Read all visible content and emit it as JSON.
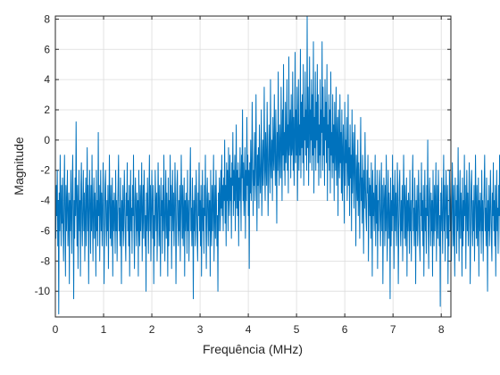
{
  "chart_data": {
    "type": "line",
    "xlabel": "Frequência (MHz)",
    "ylabel": "Magnitude",
    "xlim": [
      0,
      8.2
    ],
    "ylim": [
      -11.7,
      8.2
    ],
    "x_ticks": [
      "0",
      "1",
      "2",
      "3",
      "4",
      "5",
      "6",
      "7",
      "8"
    ],
    "y_ticks": [
      "8",
      "6",
      "4",
      "2",
      "0",
      "-2",
      "-4",
      "-6",
      "-8",
      "-10"
    ],
    "grid": true,
    "series": [
      {
        "color": "#0072bd",
        "x_start": 0,
        "x_step": 0.01,
        "values": [
          -3.5,
          -6.5,
          -3,
          -5,
          -2,
          -7,
          -4,
          -11.5,
          -3.5,
          -6,
          -1,
          -4.5,
          -7,
          -3,
          -5.5,
          -2.5,
          -6,
          -8,
          -4,
          -1,
          -5,
          -9,
          -3,
          -6,
          -4,
          -2,
          -7,
          -5,
          -3.5,
          -9.5,
          -4,
          -6,
          -2,
          -5,
          -7.5,
          -3,
          -1,
          -5,
          -10.5,
          -4,
          -6.5,
          -2.5,
          -5,
          1.2,
          -4,
          -7,
          -3,
          -8.5,
          -5,
          -2,
          -6,
          -4,
          -9,
          -3,
          -1.5,
          -5.5,
          -7,
          -4,
          -2,
          -6,
          -3.5,
          -8,
          -5,
          -2.5,
          -7,
          -4,
          -0.5,
          -6,
          -3,
          -9.5,
          -5,
          -2,
          -4.5,
          -7.5,
          -3,
          -6,
          -1,
          -5,
          -8,
          -4,
          -2.5,
          -6.5,
          -3.5,
          -5,
          -9,
          -2,
          -6,
          -4,
          -7,
          0.5,
          -5,
          -3,
          -8,
          -4.5,
          -2,
          -6,
          -3.5,
          -7,
          -5,
          -1.5,
          -4,
          -9.5,
          -6,
          -3,
          -2,
          -5.5,
          -7,
          -4,
          -6,
          -3,
          -8.5,
          -5,
          -1,
          -4,
          -6.5,
          -3,
          -7,
          -5,
          -2.5,
          -9,
          -4,
          -6,
          -3.5,
          -5,
          -7.5,
          -2,
          -6,
          -4,
          -8,
          -5,
          -3,
          -1,
          -6,
          -4.5,
          -7,
          -2.5,
          -5,
          -9.5,
          -4,
          -6,
          -3,
          -7,
          -5.5,
          -2,
          -4,
          -6.5,
          -8,
          -3.5,
          -5,
          -1.5,
          -6,
          -4,
          -7,
          -3,
          -9,
          -5,
          -2,
          -6,
          -4.5,
          -7.5,
          -3,
          -5,
          -1,
          -6,
          -8.5,
          -4,
          -2.5,
          -5,
          -7,
          -3.5,
          -6,
          -4,
          -9,
          -2,
          -5.5,
          -7,
          -3,
          -6,
          -4,
          -1.5,
          -8,
          -5,
          -3,
          -6.5,
          -2,
          -4,
          -7,
          -5,
          -10,
          -3.5,
          -6,
          -2.5,
          -5,
          -7.5,
          -4,
          -1,
          -6,
          -3,
          -8,
          -5,
          -2,
          -4.5,
          -6.5,
          -3,
          -9.5,
          -5,
          -7,
          -2,
          -4,
          -6,
          -3.5,
          -8,
          -5.5,
          -1.5,
          -4,
          -7,
          -3,
          -6,
          -9,
          -2.5,
          -5,
          -4,
          -7.5,
          -3,
          -6,
          -1,
          -5,
          -8,
          -4,
          -2,
          -6.5,
          -3.5,
          -5,
          -9,
          -2.5,
          -7,
          -4,
          -6,
          -1,
          -5,
          -3,
          -8.5,
          -4.5,
          -2,
          -6,
          -3.5,
          -7,
          -5,
          -1.5,
          -4,
          -9.5,
          -6,
          -3,
          -2,
          -5.5,
          -7,
          -4,
          -6,
          -3,
          -8,
          -5,
          -1,
          -4,
          -6.5,
          -3,
          -7,
          -5,
          -2.5,
          -9,
          -4,
          -6,
          -3.5,
          -5,
          -7.5,
          -2,
          -6,
          -4,
          -8,
          -5,
          -3,
          -0.5,
          -6,
          -4.5,
          -7,
          -2.5,
          -5,
          -10.5,
          -4,
          -6,
          -3,
          -7,
          -5.5,
          -2,
          -4,
          -6.5,
          -8,
          -3.5,
          -5,
          -1.5,
          -6,
          -4,
          -7,
          -3,
          -9,
          -5,
          -2,
          -6,
          -4.5,
          -7.5,
          -3,
          -5,
          -1,
          -6,
          -8.5,
          -4,
          -2.5,
          -5,
          -7,
          -3.5,
          -6,
          -4,
          -9,
          -2,
          -5.5,
          -7,
          -3,
          -6,
          -4,
          -1,
          -8,
          -5,
          -3,
          -6.5,
          -2,
          -4,
          -7,
          -5,
          -10,
          -3.5,
          -6,
          -2.5,
          -4,
          -6,
          -2,
          -4.5,
          -1,
          -5,
          -3,
          -6,
          -2.5,
          -4,
          0,
          -5.5,
          -3,
          -7,
          -1.5,
          -4,
          -2,
          -6,
          -0.5,
          -3.5,
          -5,
          -1,
          -4,
          -2.5,
          -6.5,
          -1.5,
          -3,
          0.5,
          -5,
          -2,
          -4,
          -1,
          -6,
          -3,
          1,
          -4.5,
          -2,
          -5,
          -1.5,
          -7,
          -2.5,
          -4,
          -0.5,
          -3,
          -6,
          -1,
          -2.5,
          2,
          -4,
          -1.5,
          -5,
          -3,
          -0.5,
          -6.5,
          -2,
          -4,
          1.5,
          -3,
          -1,
          -5,
          -2,
          -8.5,
          -1.5,
          -3.5,
          0,
          -4,
          -2.5,
          2.5,
          -1,
          -5,
          -2,
          -3,
          0.5,
          -4,
          -1.5,
          3,
          -2.5,
          -6,
          -1,
          -3,
          -0.5,
          -4.5,
          1,
          -2,
          -3.5,
          -1.5,
          2,
          -5,
          -2.5,
          0,
          -3,
          -1,
          3.5,
          -2,
          -4,
          0.5,
          -1.5,
          -3,
          2.5,
          -0.5,
          -5,
          -2,
          1,
          -1,
          -3.5,
          4,
          -1.5,
          -2.5,
          0,
          -4,
          1.5,
          -1,
          -2,
          3,
          -0.5,
          -3,
          2,
          -1.5,
          -5.5,
          0.5,
          -2,
          4.5,
          -1,
          -3,
          1,
          -0.5,
          -2.5,
          3.5,
          0,
          -4,
          2,
          -1,
          5,
          -2,
          0.5,
          -3,
          2.5,
          -1.5,
          -0.5,
          4,
          -2,
          1,
          -3.5,
          5.5,
          -1,
          0,
          2,
          -2.5,
          3,
          -1,
          -0.5,
          4.5,
          -2,
          1.5,
          -3,
          0.5,
          5.8,
          -1.5,
          2,
          -1,
          3.5,
          -4,
          0,
          4,
          -2,
          1,
          -1,
          6,
          -2.5,
          2.5,
          -0.5,
          3,
          -1.5,
          5,
          -3,
          1.5,
          0,
          4.5,
          -1,
          2,
          -2,
          8.2,
          -0.5,
          3.5,
          -3,
          1,
          5.5,
          -1.5,
          2,
          0,
          4,
          -2,
          3,
          -1,
          6.5,
          -3.5,
          1.5,
          -0.5,
          4.5,
          -2,
          2.5,
          0,
          5,
          -1.5,
          3,
          -3,
          1,
          -1,
          4,
          -2.5,
          2,
          0.5,
          6.5,
          -2,
          3.5,
          -1,
          1.5,
          -3,
          4,
          0,
          2.5,
          -1.5,
          5,
          -4,
          1,
          -0.5,
          3,
          -2,
          2,
          -3.5,
          4.5,
          -1,
          0.5,
          -2.5,
          3,
          -1.5,
          1,
          -4,
          2.5,
          -0.5,
          -2,
          3.5,
          -3,
          0,
          1.5,
          -5,
          2,
          -1,
          -2.5,
          3,
          -1.5,
          0.5,
          -3.5,
          2,
          -4,
          -1,
          1,
          -2,
          -5.5,
          2.5,
          -3,
          0,
          -1.5,
          1.5,
          -4,
          -2,
          3,
          -3,
          -0.5,
          -5,
          1,
          -2.5,
          -1,
          -6,
          2,
          -3.5,
          -1.5,
          0.5,
          -4.5,
          -2,
          1,
          -3,
          -7,
          -1,
          -2.5,
          -4,
          0,
          -5,
          -1.5,
          -3,
          -6.5,
          -2,
          1.5,
          -4,
          -2.5,
          -5.5,
          -1,
          -3,
          -7.5,
          -2,
          -4.5,
          0.5,
          -3,
          -5,
          -6,
          -2,
          -3.5,
          -1,
          -8,
          -4,
          -2.5,
          -5,
          -3,
          -6.5,
          -1.5,
          -4,
          -9,
          -2,
          -5,
          -3.5,
          -6,
          -4,
          -1,
          -7,
          -3,
          -5.5,
          -2,
          -8.5,
          -4,
          -6,
          -3,
          -2,
          -5,
          -7,
          -4.5,
          -1.5,
          -6,
          -3,
          -9.5,
          -5,
          -2.5,
          -4,
          -7,
          -3,
          -6,
          -1,
          -5,
          -8,
          -4,
          -2,
          -6.5,
          -3.5,
          -5,
          -10.5,
          -2.5,
          -7,
          -4,
          -6,
          -1,
          -5,
          -3,
          -8.5,
          -4.5,
          -2,
          -6,
          -3.5,
          -7,
          -5,
          -1.5,
          -4,
          -9.5,
          -6,
          -3,
          -2,
          -5.5,
          -7,
          -4,
          -6,
          -3,
          -8,
          -5,
          -1,
          -4,
          -6.5,
          -3,
          -7,
          -5,
          -2.5,
          -9,
          -4,
          -6,
          -3.5,
          -5,
          -7.5,
          -2,
          -6,
          -4,
          -8,
          -5,
          -3,
          -1,
          -6,
          -4.5,
          -7,
          -2.5,
          -5,
          -9.5,
          -4,
          -6,
          -3,
          -7,
          -5.5,
          -2,
          -4,
          -6.5,
          -8,
          -3.5,
          -5,
          -1.5,
          -6,
          -4,
          -7,
          -3,
          -9,
          -5,
          -2,
          -6,
          -4.5,
          -7.5,
          -3,
          -5,
          0,
          -6,
          -8.5,
          -4,
          -2.5,
          -5,
          -7,
          -3.5,
          -6,
          -4,
          -9,
          -2,
          -5.5,
          -7,
          -3,
          -6,
          -4,
          -1.5,
          -8,
          -5,
          -3,
          -6.5,
          -2,
          -4,
          -7,
          -5,
          -11,
          -3.5,
          -6,
          -2.5,
          -5,
          -7.5,
          -4,
          -1,
          -6,
          -3,
          -8,
          -5,
          -2,
          -4.5,
          -6.5,
          -3,
          -9.5,
          -5,
          -7,
          -2,
          -4,
          -6,
          -3.5,
          -8,
          -5.5,
          -1.5,
          -4,
          -7,
          -3,
          -6,
          -9,
          -2.5,
          -5,
          -4,
          -7.5,
          -3,
          -6,
          -0.5,
          -5,
          -8,
          -4,
          -2,
          -6.5,
          -3.5,
          -5,
          -9,
          -2.5,
          -7,
          -4,
          -6,
          -1,
          -5,
          -3,
          -8.5,
          -4.5,
          -2,
          -6,
          -3.5,
          -7,
          -5,
          -1.5,
          -4,
          -9.5,
          -6,
          -3,
          -2,
          -5.5,
          -7,
          -4,
          -6,
          -3,
          -8,
          -5,
          -1,
          -4,
          -6.5,
          -3,
          -7,
          -5,
          -2.5,
          -9,
          -4,
          -6,
          -3.5,
          -5,
          -7.5,
          -2,
          -6,
          -4,
          -8,
          -5,
          -3,
          -1,
          -6,
          -4.5,
          -7,
          -2.5,
          -5,
          -10,
          -4,
          -6,
          -3,
          -7,
          -5.5,
          -2,
          -4,
          -6.5,
          -8,
          -3.5,
          -5,
          -1.5,
          -6,
          -4,
          -7,
          -3,
          -9,
          -5,
          -2,
          -6,
          -4.5,
          -7.5,
          -3,
          -5,
          -1,
          -6,
          -8.5,
          -4,
          -2.5,
          -5,
          -7,
          -3.5,
          -6,
          -4,
          -9.5,
          -2,
          -5.5,
          -7,
          -3,
          -6,
          -4,
          -1.5,
          -8,
          -5,
          -3,
          -6.5,
          -2,
          -4,
          -10,
          -5,
          -7,
          -3.5,
          -6,
          -2.5,
          -11,
          -5,
          -7.5,
          -4,
          -3
        ]
      }
    ]
  }
}
